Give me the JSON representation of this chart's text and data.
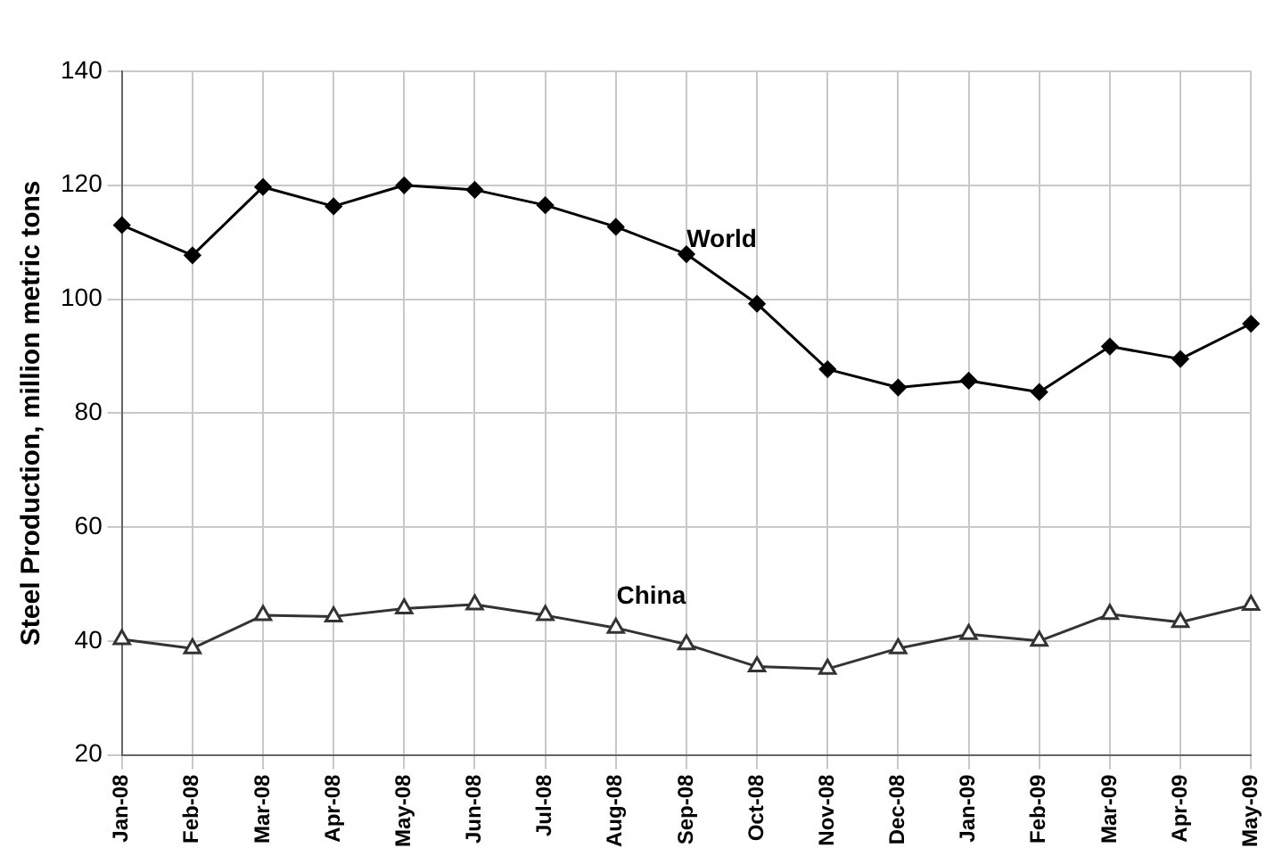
{
  "chart_data": {
    "type": "line",
    "ylabel": "Steel Production, million metric tons",
    "categories": [
      "Jan-08",
      "Feb-08",
      "Mar-08",
      "Apr-08",
      "May-08",
      "Jun-08",
      "Jul-08",
      "Aug-08",
      "Sep-08",
      "Oct-08",
      "Nov-08",
      "Dec-08",
      "Jan-09",
      "Feb-09",
      "Mar-09",
      "Apr-09",
      "May-09"
    ],
    "series": [
      {
        "name": "World",
        "color": "#000000",
        "marker": "diamond",
        "values": [
          113,
          107.7,
          119.7,
          116.3,
          120,
          119.2,
          116.5,
          112.7,
          107.9,
          99.2,
          87.7,
          84.5,
          85.7,
          83.7,
          91.7,
          89.5,
          95.7
        ]
      },
      {
        "name": "China",
        "color": "#333333",
        "marker": "triangle",
        "values": [
          40.3,
          38.7,
          44.5,
          44.3,
          45.7,
          46.4,
          44.5,
          42.3,
          39.4,
          35.5,
          35.1,
          38.7,
          41.2,
          40,
          44.7,
          43.3,
          46.3
        ]
      }
    ],
    "ylim": [
      20,
      140
    ],
    "yticks": [
      20,
      40,
      60,
      80,
      100,
      120,
      140
    ],
    "grid": true,
    "legend": false,
    "line_style": "solid"
  }
}
